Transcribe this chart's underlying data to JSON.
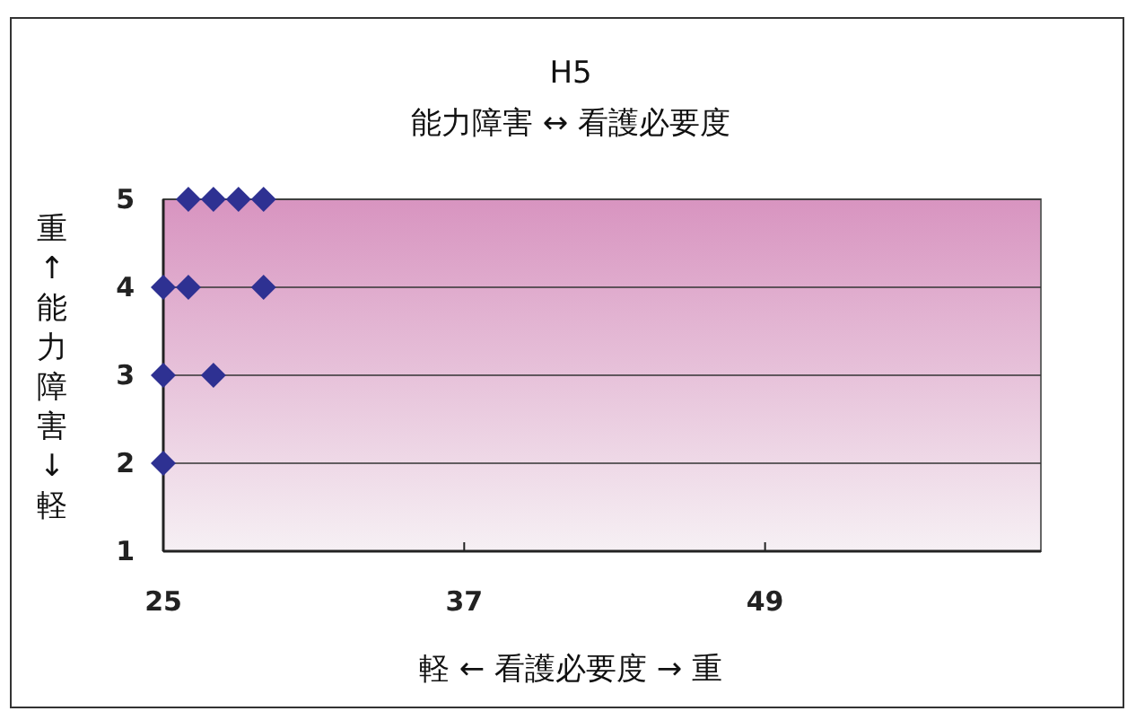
{
  "chart_data": {
    "type": "scatter",
    "title": "H5",
    "subtitle": "能力障害 ↔ 看護必要度",
    "xlabel": "軽 ← 看護必要度 → 重",
    "ylabel": "重↑能力障害↓軽",
    "series": [
      {
        "color": "#2e3192",
        "x": [
          26,
          27,
          28,
          29,
          25,
          26,
          29,
          25,
          27,
          25
        ],
        "values": [
          5,
          5,
          5,
          5,
          4,
          4,
          4,
          3,
          3,
          2
        ]
      }
    ],
    "xlim": [
      25,
      60
    ],
    "xticks": [
      25,
      37,
      49
    ],
    "ylim": [
      1,
      5
    ],
    "yticks": [
      1,
      2,
      3,
      4,
      5
    ],
    "grid": "y",
    "marker": "diamond"
  }
}
